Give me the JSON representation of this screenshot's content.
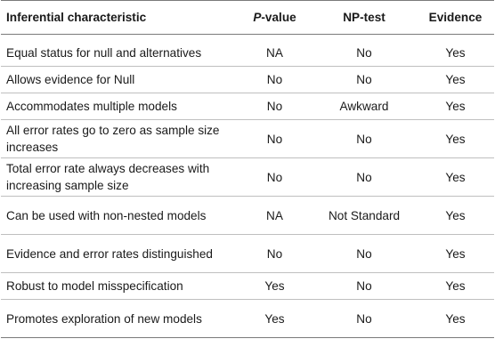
{
  "table": {
    "headers": {
      "characteristic": "Inferential characteristic",
      "pvalue_prefix": "P",
      "pvalue_suffix": "-value",
      "nptest": "NP-test",
      "evidence": "Evidence"
    },
    "rows": [
      {
        "characteristic": "Equal status for null and alternatives",
        "pvalue": "NA",
        "nptest": "No",
        "evidence": "Yes"
      },
      {
        "characteristic": "Allows evidence for Null",
        "pvalue": "No",
        "nptest": "No",
        "evidence": "Yes"
      },
      {
        "characteristic": "Accommodates multiple models",
        "pvalue": "No",
        "nptest": "Awkward",
        "evidence": "Yes"
      },
      {
        "characteristic": "All error rates go to zero as sample size increases",
        "pvalue": "No",
        "nptest": "No",
        "evidence": "Yes"
      },
      {
        "characteristic": "Total error rate always decreases with increasing sample size",
        "pvalue": "No",
        "nptest": "No",
        "evidence": "Yes"
      },
      {
        "characteristic": "Can be used with non-nested models",
        "pvalue": "NA",
        "nptest": "Not Standard",
        "evidence": "Yes"
      },
      {
        "characteristic": "Evidence and error rates distinguished",
        "pvalue": "No",
        "nptest": "No",
        "evidence": "Yes"
      },
      {
        "characteristic": "Robust to model misspecification",
        "pvalue": "Yes",
        "nptest": "No",
        "evidence": "Yes"
      },
      {
        "characteristic": "Promotes exploration of new models",
        "pvalue": "Yes",
        "nptest": "No",
        "evidence": "Yes"
      }
    ]
  }
}
